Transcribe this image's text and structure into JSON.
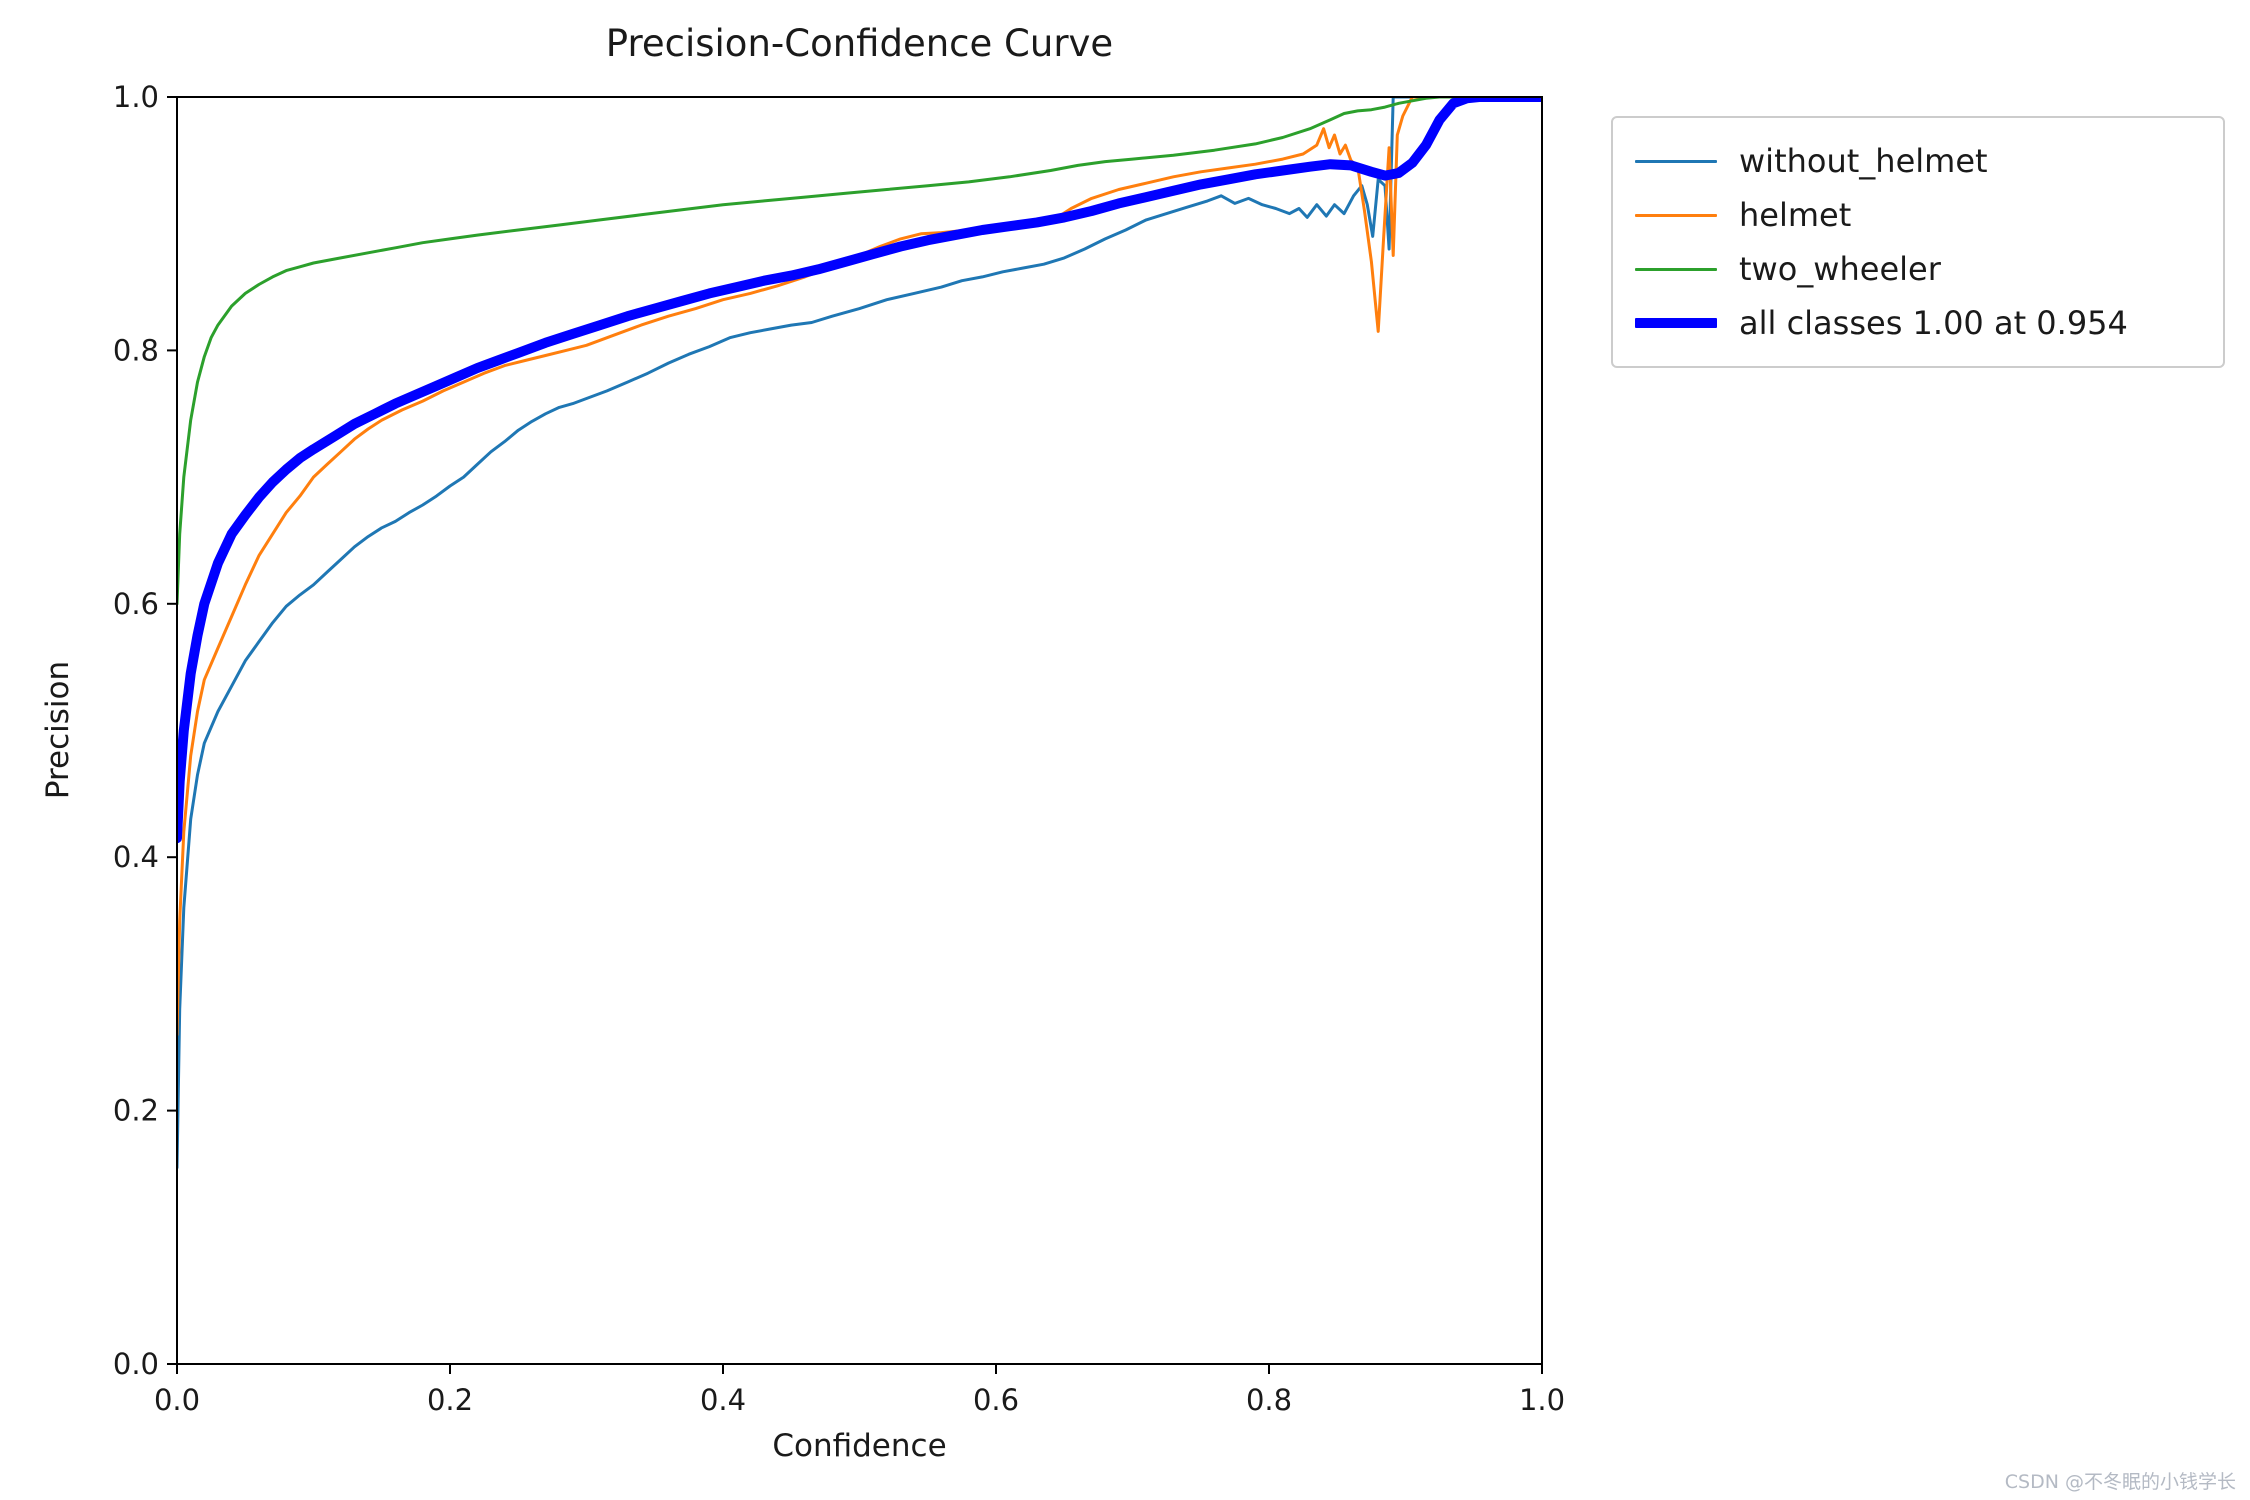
{
  "chart_data": {
    "type": "line",
    "title": "Precision-Confidence Curve",
    "xlabel": "Confidence",
    "ylabel": "Precision",
    "xlim": [
      0.0,
      1.0
    ],
    "ylim": [
      0.0,
      1.0
    ],
    "grid": false,
    "legend_position": "outside-top-right",
    "xticks": [
      {
        "v": 0.0,
        "label": "0.0"
      },
      {
        "v": 0.2,
        "label": "0.2"
      },
      {
        "v": 0.4,
        "label": "0.4"
      },
      {
        "v": 0.6,
        "label": "0.6"
      },
      {
        "v": 0.8,
        "label": "0.8"
      },
      {
        "v": 1.0,
        "label": "1.0"
      }
    ],
    "yticks": [
      {
        "v": 0.0,
        "label": "0.0"
      },
      {
        "v": 0.2,
        "label": "0.2"
      },
      {
        "v": 0.4,
        "label": "0.4"
      },
      {
        "v": 0.6,
        "label": "0.6"
      },
      {
        "v": 0.8,
        "label": "0.8"
      },
      {
        "v": 1.0,
        "label": "1.0"
      }
    ],
    "series": [
      {
        "label": "without_helmet",
        "color": "#1f77b4",
        "line_width": 3,
        "points": [
          [
            0.0,
            0.155
          ],
          [
            0.002,
            0.28
          ],
          [
            0.005,
            0.36
          ],
          [
            0.01,
            0.43
          ],
          [
            0.015,
            0.465
          ],
          [
            0.02,
            0.49
          ],
          [
            0.03,
            0.515
          ],
          [
            0.04,
            0.535
          ],
          [
            0.05,
            0.555
          ],
          [
            0.06,
            0.57
          ],
          [
            0.07,
            0.585
          ],
          [
            0.08,
            0.598
          ],
          [
            0.09,
            0.607
          ],
          [
            0.1,
            0.615
          ],
          [
            0.11,
            0.625
          ],
          [
            0.12,
            0.635
          ],
          [
            0.13,
            0.645
          ],
          [
            0.14,
            0.653
          ],
          [
            0.15,
            0.66
          ],
          [
            0.16,
            0.665
          ],
          [
            0.17,
            0.672
          ],
          [
            0.18,
            0.678
          ],
          [
            0.19,
            0.685
          ],
          [
            0.2,
            0.693
          ],
          [
            0.21,
            0.7
          ],
          [
            0.22,
            0.71
          ],
          [
            0.23,
            0.72
          ],
          [
            0.24,
            0.728
          ],
          [
            0.25,
            0.737
          ],
          [
            0.26,
            0.744
          ],
          [
            0.27,
            0.75
          ],
          [
            0.28,
            0.755
          ],
          [
            0.29,
            0.758
          ],
          [
            0.3,
            0.762
          ],
          [
            0.315,
            0.768
          ],
          [
            0.33,
            0.775
          ],
          [
            0.345,
            0.782
          ],
          [
            0.36,
            0.79
          ],
          [
            0.375,
            0.797
          ],
          [
            0.39,
            0.803
          ],
          [
            0.405,
            0.81
          ],
          [
            0.42,
            0.814
          ],
          [
            0.435,
            0.817
          ],
          [
            0.45,
            0.82
          ],
          [
            0.465,
            0.822
          ],
          [
            0.48,
            0.827
          ],
          [
            0.5,
            0.833
          ],
          [
            0.52,
            0.84
          ],
          [
            0.54,
            0.845
          ],
          [
            0.56,
            0.85
          ],
          [
            0.575,
            0.855
          ],
          [
            0.59,
            0.858
          ],
          [
            0.605,
            0.862
          ],
          [
            0.62,
            0.865
          ],
          [
            0.635,
            0.868
          ],
          [
            0.65,
            0.873
          ],
          [
            0.665,
            0.88
          ],
          [
            0.68,
            0.888
          ],
          [
            0.695,
            0.895
          ],
          [
            0.71,
            0.903
          ],
          [
            0.725,
            0.908
          ],
          [
            0.74,
            0.913
          ],
          [
            0.755,
            0.918
          ],
          [
            0.765,
            0.922
          ],
          [
            0.775,
            0.916
          ],
          [
            0.785,
            0.92
          ],
          [
            0.795,
            0.915
          ],
          [
            0.805,
            0.912
          ],
          [
            0.815,
            0.908
          ],
          [
            0.822,
            0.912
          ],
          [
            0.828,
            0.905
          ],
          [
            0.835,
            0.915
          ],
          [
            0.842,
            0.906
          ],
          [
            0.848,
            0.915
          ],
          [
            0.855,
            0.908
          ],
          [
            0.862,
            0.922
          ],
          [
            0.868,
            0.93
          ],
          [
            0.872,
            0.915
          ],
          [
            0.876,
            0.89
          ],
          [
            0.88,
            0.935
          ],
          [
            0.885,
            0.93
          ],
          [
            0.888,
            0.88
          ],
          [
            0.891,
            1.0
          ],
          [
            1.0,
            1.0
          ]
        ]
      },
      {
        "label": "helmet",
        "color": "#ff7f0e",
        "line_width": 3,
        "points": [
          [
            0.0,
            0.26
          ],
          [
            0.002,
            0.35
          ],
          [
            0.005,
            0.42
          ],
          [
            0.01,
            0.48
          ],
          [
            0.015,
            0.515
          ],
          [
            0.02,
            0.54
          ],
          [
            0.03,
            0.565
          ],
          [
            0.04,
            0.59
          ],
          [
            0.05,
            0.615
          ],
          [
            0.06,
            0.638
          ],
          [
            0.07,
            0.655
          ],
          [
            0.08,
            0.672
          ],
          [
            0.09,
            0.685
          ],
          [
            0.1,
            0.7
          ],
          [
            0.11,
            0.71
          ],
          [
            0.12,
            0.72
          ],
          [
            0.13,
            0.73
          ],
          [
            0.14,
            0.738
          ],
          [
            0.15,
            0.745
          ],
          [
            0.165,
            0.753
          ],
          [
            0.18,
            0.76
          ],
          [
            0.195,
            0.768
          ],
          [
            0.21,
            0.775
          ],
          [
            0.225,
            0.782
          ],
          [
            0.24,
            0.788
          ],
          [
            0.255,
            0.792
          ],
          [
            0.27,
            0.796
          ],
          [
            0.285,
            0.8
          ],
          [
            0.3,
            0.804
          ],
          [
            0.32,
            0.812
          ],
          [
            0.34,
            0.82
          ],
          [
            0.36,
            0.827
          ],
          [
            0.38,
            0.833
          ],
          [
            0.4,
            0.84
          ],
          [
            0.42,
            0.845
          ],
          [
            0.44,
            0.851
          ],
          [
            0.46,
            0.858
          ],
          [
            0.48,
            0.866
          ],
          [
            0.5,
            0.875
          ],
          [
            0.515,
            0.882
          ],
          [
            0.53,
            0.888
          ],
          [
            0.545,
            0.892
          ],
          [
            0.56,
            0.893
          ],
          [
            0.58,
            0.895
          ],
          [
            0.6,
            0.898
          ],
          [
            0.615,
            0.9
          ],
          [
            0.63,
            0.903
          ],
          [
            0.645,
            0.905
          ],
          [
            0.655,
            0.912
          ],
          [
            0.67,
            0.92
          ],
          [
            0.69,
            0.927
          ],
          [
            0.71,
            0.932
          ],
          [
            0.73,
            0.937
          ],
          [
            0.75,
            0.941
          ],
          [
            0.77,
            0.944
          ],
          [
            0.79,
            0.947
          ],
          [
            0.81,
            0.951
          ],
          [
            0.825,
            0.955
          ],
          [
            0.835,
            0.962
          ],
          [
            0.84,
            0.975
          ],
          [
            0.844,
            0.96
          ],
          [
            0.848,
            0.97
          ],
          [
            0.852,
            0.955
          ],
          [
            0.856,
            0.962
          ],
          [
            0.86,
            0.95
          ],
          [
            0.865,
            0.945
          ],
          [
            0.87,
            0.91
          ],
          [
            0.875,
            0.87
          ],
          [
            0.88,
            0.815
          ],
          [
            0.884,
            0.89
          ],
          [
            0.888,
            0.96
          ],
          [
            0.891,
            0.875
          ],
          [
            0.894,
            0.97
          ],
          [
            0.898,
            0.985
          ],
          [
            0.905,
            1.0
          ],
          [
            1.0,
            1.0
          ]
        ]
      },
      {
        "label": "two_wheeler",
        "color": "#2ca02c",
        "line_width": 3,
        "points": [
          [
            0.0,
            0.6
          ],
          [
            0.002,
            0.655
          ],
          [
            0.005,
            0.7
          ],
          [
            0.01,
            0.745
          ],
          [
            0.015,
            0.775
          ],
          [
            0.02,
            0.795
          ],
          [
            0.025,
            0.81
          ],
          [
            0.03,
            0.82
          ],
          [
            0.04,
            0.835
          ],
          [
            0.05,
            0.845
          ],
          [
            0.06,
            0.852
          ],
          [
            0.07,
            0.858
          ],
          [
            0.08,
            0.863
          ],
          [
            0.09,
            0.866
          ],
          [
            0.1,
            0.869
          ],
          [
            0.12,
            0.873
          ],
          [
            0.14,
            0.877
          ],
          [
            0.16,
            0.881
          ],
          [
            0.18,
            0.885
          ],
          [
            0.2,
            0.888
          ],
          [
            0.22,
            0.891
          ],
          [
            0.25,
            0.895
          ],
          [
            0.28,
            0.899
          ],
          [
            0.31,
            0.903
          ],
          [
            0.34,
            0.907
          ],
          [
            0.37,
            0.911
          ],
          [
            0.4,
            0.915
          ],
          [
            0.43,
            0.918
          ],
          [
            0.46,
            0.921
          ],
          [
            0.49,
            0.924
          ],
          [
            0.52,
            0.927
          ],
          [
            0.55,
            0.93
          ],
          [
            0.58,
            0.933
          ],
          [
            0.61,
            0.937
          ],
          [
            0.64,
            0.942
          ],
          [
            0.66,
            0.946
          ],
          [
            0.68,
            0.949
          ],
          [
            0.7,
            0.951
          ],
          [
            0.73,
            0.954
          ],
          [
            0.76,
            0.958
          ],
          [
            0.79,
            0.963
          ],
          [
            0.81,
            0.968
          ],
          [
            0.83,
            0.975
          ],
          [
            0.845,
            0.982
          ],
          [
            0.855,
            0.987
          ],
          [
            0.865,
            0.989
          ],
          [
            0.875,
            0.99
          ],
          [
            0.885,
            0.992
          ],
          [
            0.895,
            0.995
          ],
          [
            0.905,
            0.997
          ],
          [
            0.915,
            0.999
          ],
          [
            0.925,
            1.0
          ],
          [
            1.0,
            1.0
          ]
        ]
      },
      {
        "label": "all classes 1.00 at 0.954",
        "color": "#0000ff",
        "line_width": 10,
        "points": [
          [
            0.0,
            0.415
          ],
          [
            0.002,
            0.46
          ],
          [
            0.005,
            0.5
          ],
          [
            0.01,
            0.545
          ],
          [
            0.015,
            0.575
          ],
          [
            0.02,
            0.6
          ],
          [
            0.03,
            0.632
          ],
          [
            0.04,
            0.655
          ],
          [
            0.05,
            0.67
          ],
          [
            0.06,
            0.684
          ],
          [
            0.07,
            0.696
          ],
          [
            0.08,
            0.706
          ],
          [
            0.09,
            0.715
          ],
          [
            0.1,
            0.722
          ],
          [
            0.115,
            0.732
          ],
          [
            0.13,
            0.742
          ],
          [
            0.145,
            0.75
          ],
          [
            0.16,
            0.758
          ],
          [
            0.175,
            0.765
          ],
          [
            0.19,
            0.772
          ],
          [
            0.205,
            0.779
          ],
          [
            0.22,
            0.786
          ],
          [
            0.235,
            0.792
          ],
          [
            0.25,
            0.798
          ],
          [
            0.27,
            0.806
          ],
          [
            0.29,
            0.813
          ],
          [
            0.31,
            0.82
          ],
          [
            0.33,
            0.827
          ],
          [
            0.35,
            0.833
          ],
          [
            0.37,
            0.839
          ],
          [
            0.39,
            0.845
          ],
          [
            0.41,
            0.85
          ],
          [
            0.43,
            0.855
          ],
          [
            0.45,
            0.859
          ],
          [
            0.47,
            0.864
          ],
          [
            0.49,
            0.87
          ],
          [
            0.51,
            0.876
          ],
          [
            0.53,
            0.882
          ],
          [
            0.55,
            0.887
          ],
          [
            0.57,
            0.891
          ],
          [
            0.59,
            0.895
          ],
          [
            0.61,
            0.898
          ],
          [
            0.63,
            0.901
          ],
          [
            0.65,
            0.905
          ],
          [
            0.67,
            0.91
          ],
          [
            0.69,
            0.916
          ],
          [
            0.71,
            0.921
          ],
          [
            0.73,
            0.926
          ],
          [
            0.75,
            0.931
          ],
          [
            0.77,
            0.935
          ],
          [
            0.79,
            0.939
          ],
          [
            0.81,
            0.942
          ],
          [
            0.83,
            0.945
          ],
          [
            0.845,
            0.947
          ],
          [
            0.86,
            0.946
          ],
          [
            0.875,
            0.941
          ],
          [
            0.885,
            0.938
          ],
          [
            0.895,
            0.94
          ],
          [
            0.905,
            0.948
          ],
          [
            0.915,
            0.962
          ],
          [
            0.925,
            0.982
          ],
          [
            0.935,
            0.995
          ],
          [
            0.945,
            0.999
          ],
          [
            0.954,
            1.0
          ],
          [
            1.0,
            1.0
          ]
        ]
      }
    ]
  },
  "watermark": {
    "text": "CSDN @不冬眠的小钱学长"
  }
}
